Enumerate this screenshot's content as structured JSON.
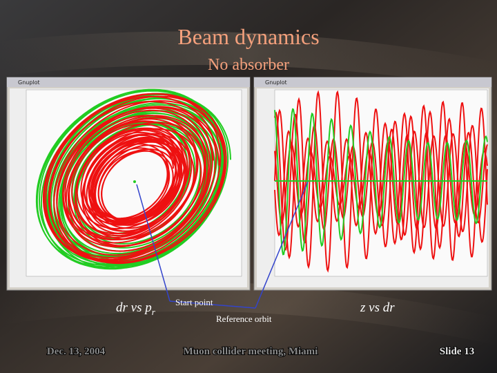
{
  "title": "Beam dynamics",
  "subtitle": "No absorber",
  "windows": [
    {
      "title": "Gnuplot"
    },
    {
      "title": "Gnuplot"
    }
  ],
  "captions": {
    "left": "dr vs p",
    "left_subscript": "r",
    "right": "z vs dr"
  },
  "annotations": {
    "start": "Start point",
    "reference": "Reference orbit"
  },
  "footer": {
    "date": "Dec. 13, 2004",
    "event": "Muon collider meeting, Miami",
    "slide": "Slide 13"
  }
}
